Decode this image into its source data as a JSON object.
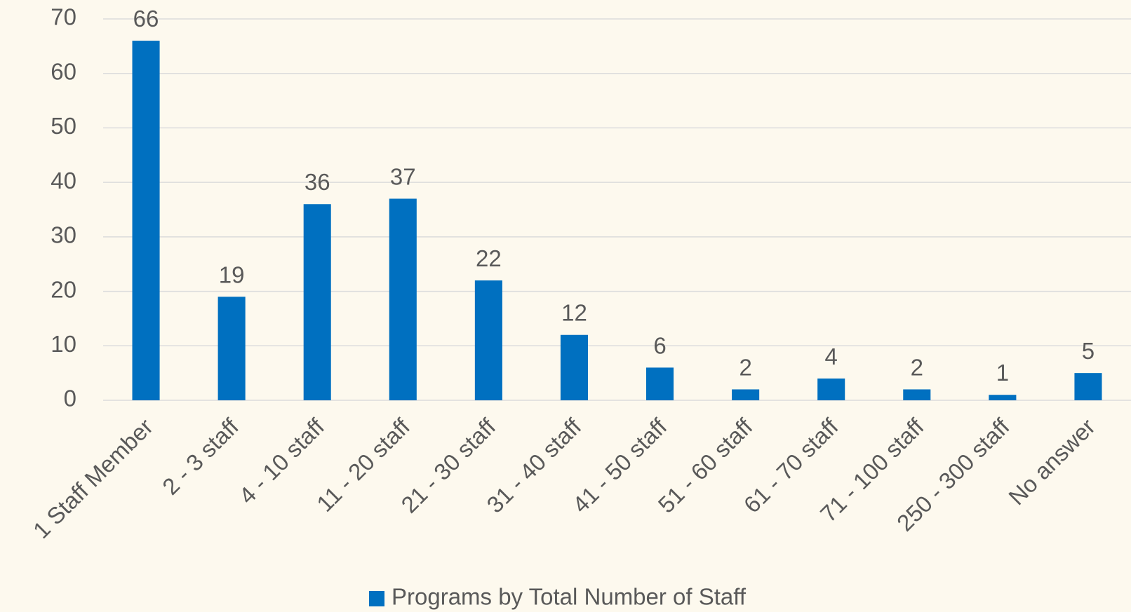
{
  "chart_data": {
    "type": "bar",
    "categories": [
      "1 Staff Member",
      "2 - 3 staff",
      "4 - 10 staff",
      "11 - 20 staff",
      "21 - 30 staff",
      "31 - 40 staff",
      "41 - 50 staff",
      "51 - 60 staff",
      "61 - 70 staff",
      "71 - 100 staff",
      "250 - 300 staff",
      "No answer"
    ],
    "series": [
      {
        "name": "Programs by Total Number of Staff",
        "color": "#0070c0",
        "values": [
          66,
          19,
          36,
          37,
          22,
          12,
          6,
          2,
          4,
          2,
          1,
          5
        ]
      }
    ],
    "ylim": [
      0,
      70
    ],
    "yticks": [
      0,
      10,
      20,
      30,
      40,
      50,
      60,
      70
    ],
    "grid": true,
    "legend": "bottom"
  }
}
